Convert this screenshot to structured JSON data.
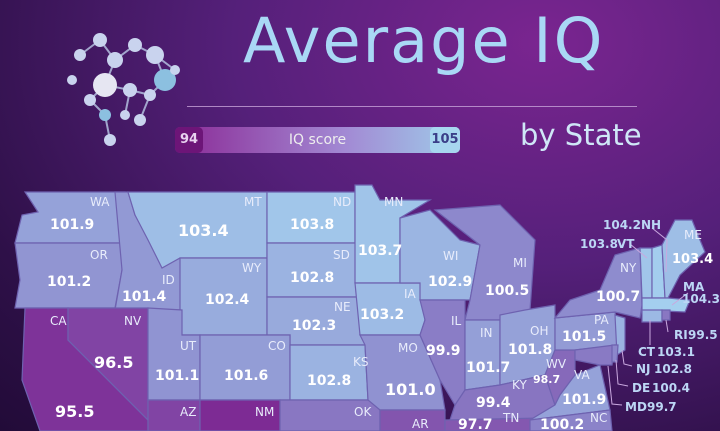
{
  "header": {
    "title": "Average IQ",
    "subtitle": "by State"
  },
  "legend": {
    "min": "94",
    "max": "105",
    "label": "IQ score",
    "min_color": "#7a1a8a",
    "max_color": "#a8dcf5"
  },
  "states": {
    "WA": "101.9",
    "OR": "101.2",
    "CA": "95.5",
    "NV": "96.5",
    "ID": "101.4",
    "MT": "103.4",
    "WY": "102.4",
    "UT": "101.1",
    "CO": "101.6",
    "AZ": "",
    "NM": "",
    "ND": "103.8",
    "SD": "102.8",
    "NE": "102.3",
    "KS": "102.8",
    "OK": "",
    "MN": "103.7",
    "IA": "103.2",
    "MO": "101.0",
    "AR": "",
    "WI": "102.9",
    "IL": "99.9",
    "MI": "100.5",
    "IN": "101.7",
    "OH": "101.8",
    "KY": "99.4",
    "WV": "98.7",
    "TN": "97.7",
    "VA": "101.9",
    "NC": "100.2",
    "PA": "101.5",
    "NY": "100.7",
    "VT": "103.8",
    "NH": "104.2",
    "ME": "103.4",
    "MA": "104.3",
    "RI": "99.5",
    "CT": "103.1",
    "NJ": "102.8",
    "DE": "100.4",
    "MD": "99.7"
  },
  "hidden_fill": {
    "AZ": "96.5",
    "NM": "95",
    "OK": "99.5",
    "AR": "97.5"
  }
}
